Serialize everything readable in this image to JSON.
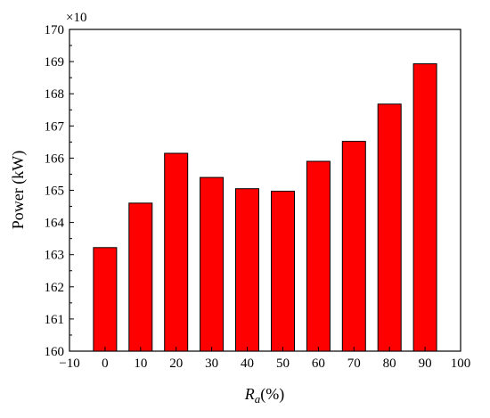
{
  "chart_data": {
    "type": "bar",
    "title": "",
    "x": [
      0,
      10,
      20,
      30,
      40,
      50,
      60,
      70,
      80,
      90
    ],
    "values": [
      163.22,
      164.6,
      166.15,
      165.4,
      165.05,
      164.97,
      165.9,
      166.52,
      167.68,
      168.93
    ],
    "xlim": [
      -10,
      100
    ],
    "ylim": [
      160,
      170
    ],
    "xticks": [
      "−10",
      "0",
      "10",
      "20",
      "30",
      "40",
      "50",
      "60",
      "70",
      "80",
      "90",
      "100"
    ],
    "yticks": [
      "160",
      "161",
      "162",
      "163",
      "164",
      "165",
      "166",
      "167",
      "168",
      "169",
      "170"
    ],
    "xlabel_main": "R",
    "xlabel_sub": "a",
    "xlabel_unit": "(%)",
    "ylabel": "Power (kW)",
    "multiplier": "×10",
    "bar_color": "#ff0000",
    "edge_color": "#000000",
    "grid": false,
    "legend": "none"
  }
}
